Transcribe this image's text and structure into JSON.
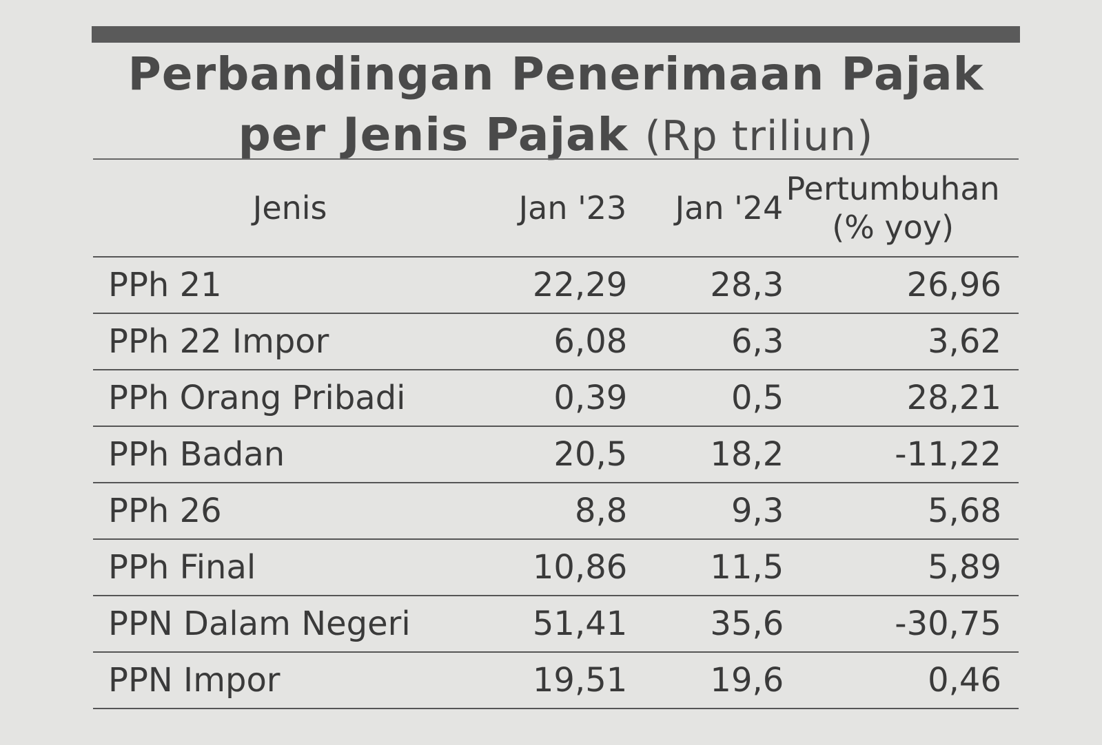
{
  "title": {
    "lines": [
      "Perbandingan Penerimaan Pajak",
      "per Jenis Pajak"
    ],
    "unit": "(Rp triliun)"
  },
  "table": {
    "headers": [
      "Jenis",
      "Jan '23",
      "Jan '24",
      "Pertumbuhan (% yoy)"
    ],
    "rows": [
      [
        "PPh 21",
        "22,29",
        "28,3",
        "26,96"
      ],
      [
        "PPh 22 Impor",
        "6,08",
        "6,3",
        "3,62"
      ],
      [
        "PPh Orang Pribadi",
        "0,39",
        "0,5",
        "28,21"
      ],
      [
        "PPh Badan",
        "20,5",
        "18,2",
        "-11,22"
      ],
      [
        "PPh 26",
        "8,8",
        "9,3",
        "5,68"
      ],
      [
        "PPh Final",
        "10,86",
        "11,5",
        "5,89"
      ],
      [
        "PPN Dalam Negeri",
        "51,41",
        "35,6",
        "-30,75"
      ],
      [
        "PPN Impor",
        "19,51",
        "19,6",
        "0,46"
      ]
    ]
  }
}
